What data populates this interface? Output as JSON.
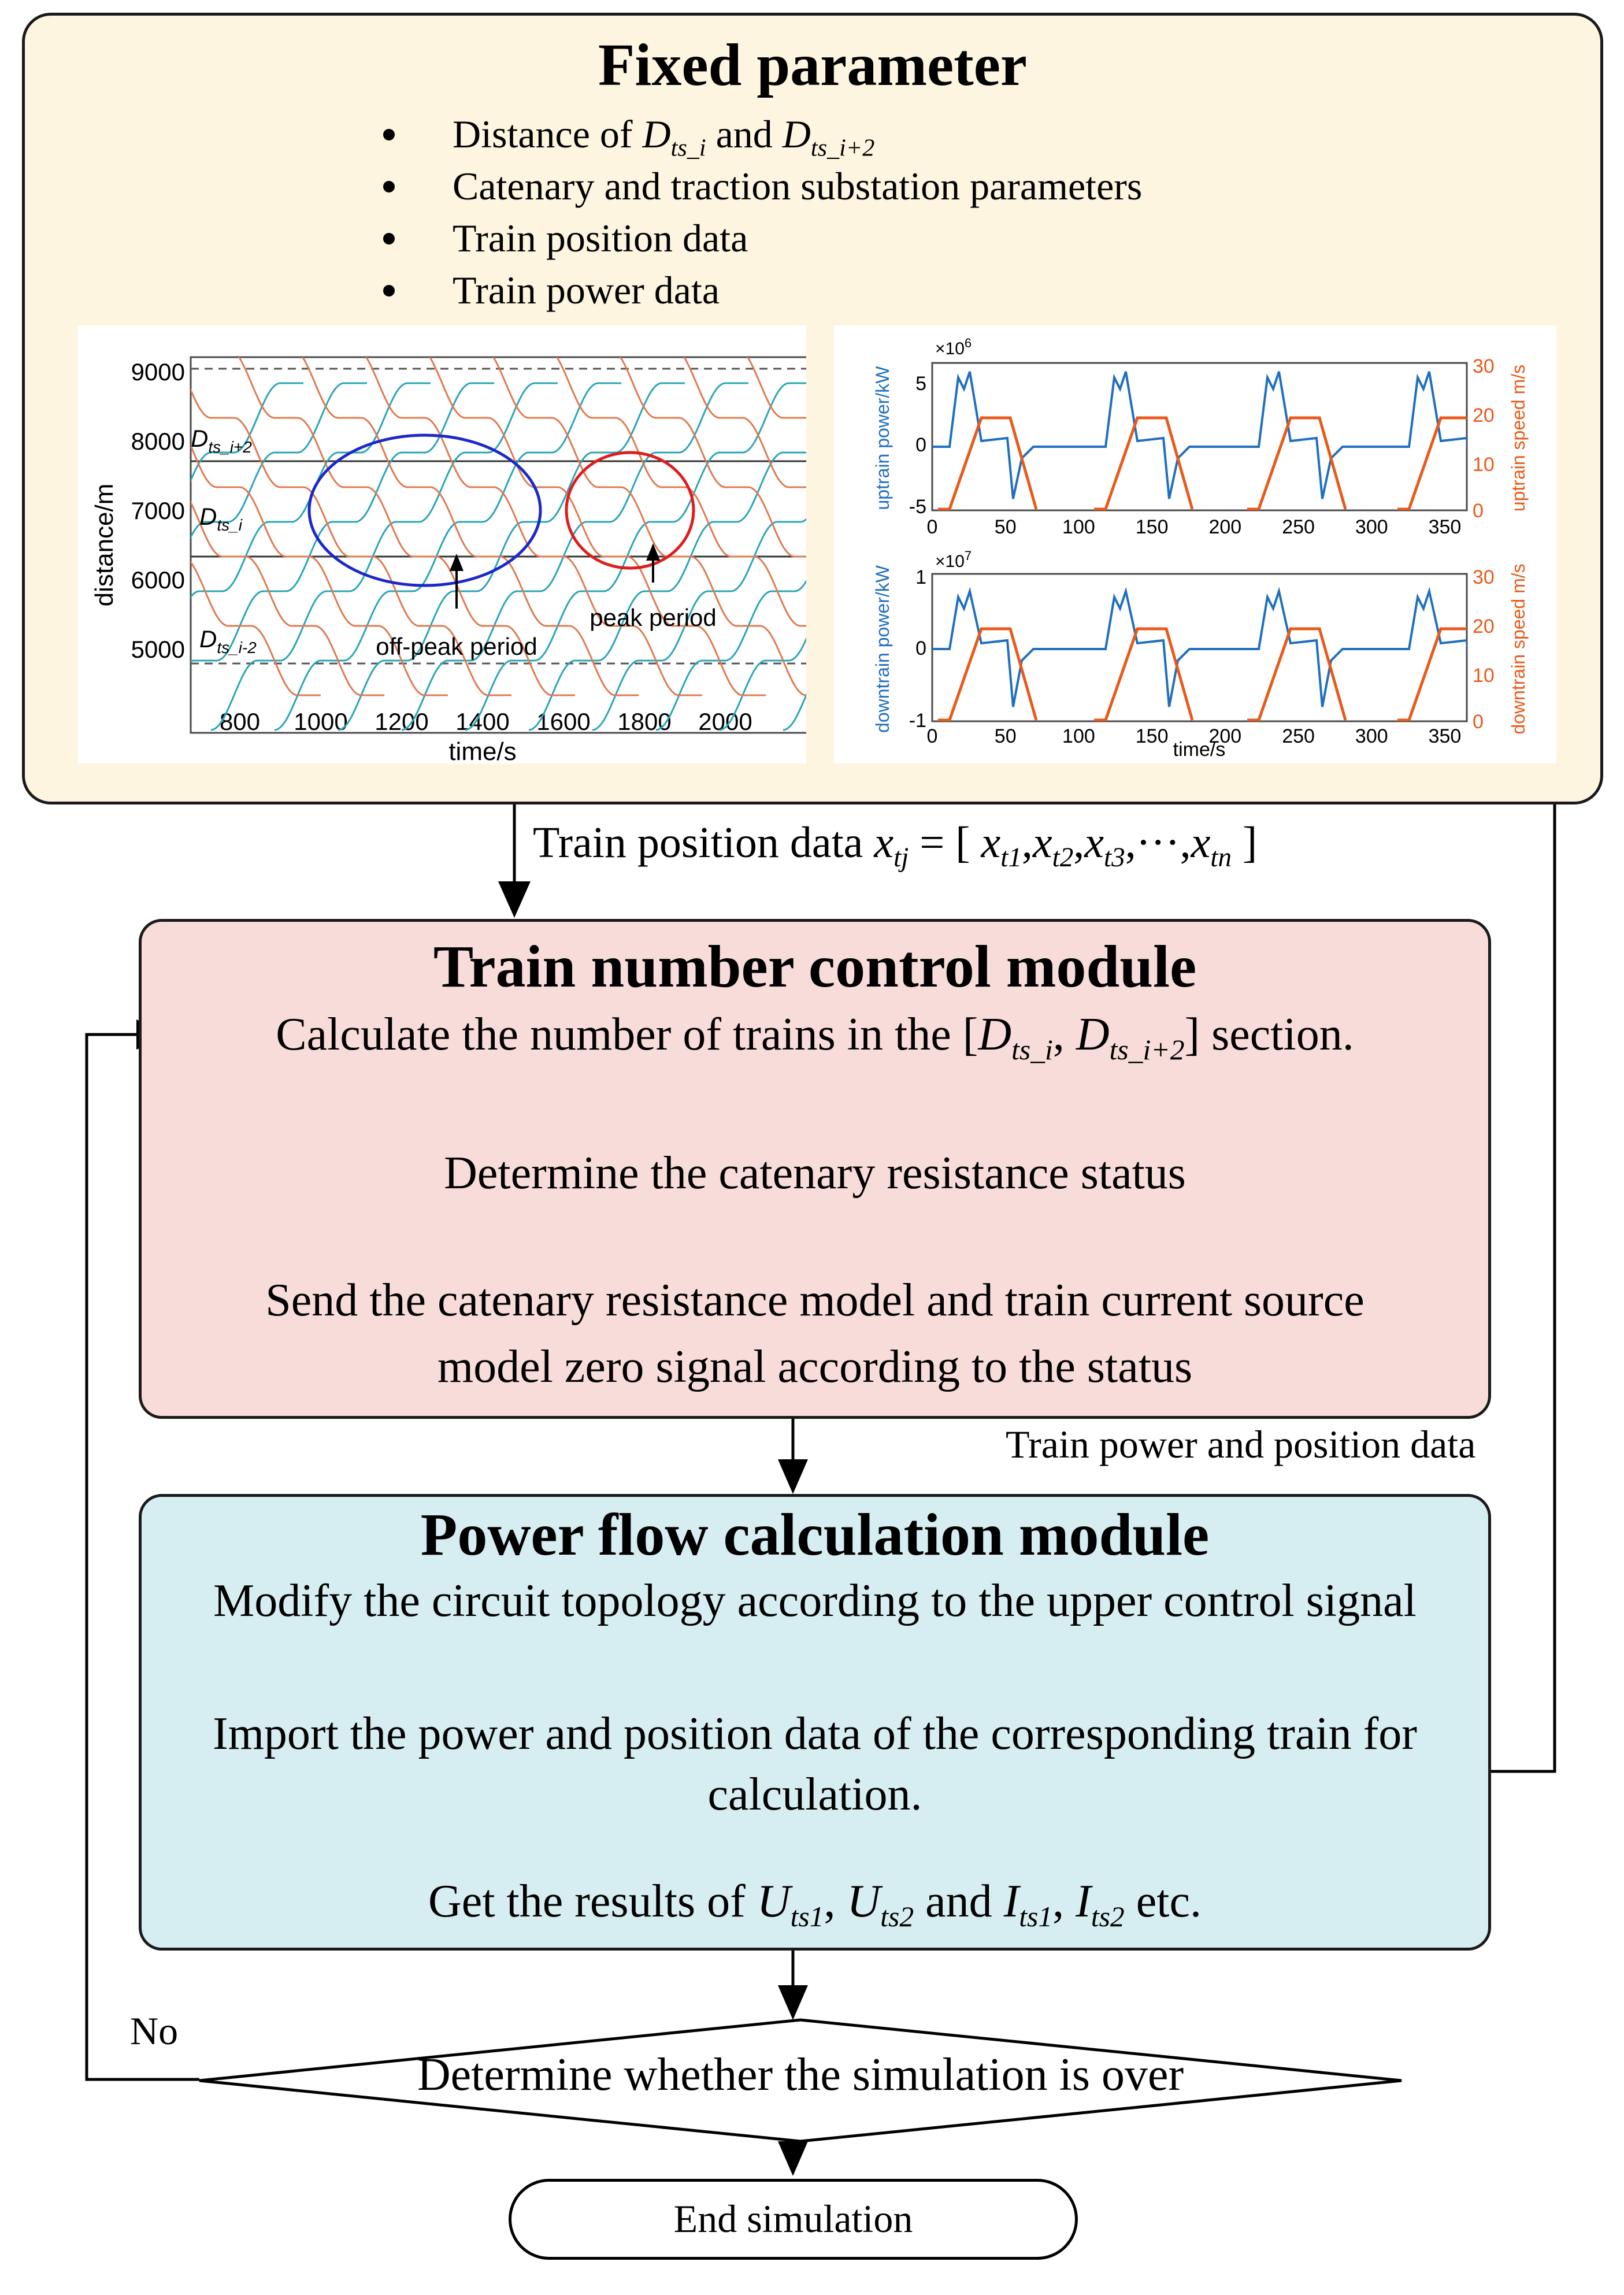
{
  "fixed": {
    "title": "Fixed parameter",
    "bullet1_pre": "Distance of ",
    "bullet1_D1": "D",
    "bullet1_s1": "ts_i",
    "bullet1_mid": " and ",
    "bullet1_D2": "D",
    "bullet1_s2": "ts_i+2",
    "bullet2": "Catenary and traction substation parameters",
    "bullet3": "Train position data",
    "bullet4": "Train power data"
  },
  "left_plot": {
    "xlabel": "time/s",
    "ylabel": "distance/m",
    "xticks": [
      "800",
      "1000",
      "1200",
      "1400",
      "1600",
      "1800",
      "2000"
    ],
    "yticks": [
      "9000",
      "8000",
      "7000",
      "6000",
      "5000"
    ],
    "label_top_D": "D",
    "label_top_sub": "ts_i+2",
    "label_mid_D": "D",
    "label_mid_sub": "ts_i",
    "label_bot_D": "D",
    "label_bot_sub": "ts_i-2",
    "offpeak": "off-peak period",
    "peak": "peak period",
    "colors": {
      "up": "#2aa5b8",
      "down": "#e07a50",
      "offpeak_ellipse": "#1c28c8",
      "peak_ellipse": "#e01c1c"
    }
  },
  "right_plot": {
    "top_ylabel_left": "uptrain power/kW",
    "top_ylabel_right": "uptrain speed m/s",
    "top_exp_base": "×10",
    "top_exp": "6",
    "top_left_ticks": [
      "5",
      "0",
      "-5"
    ],
    "top_right_ticks": [
      "30",
      "20",
      "10",
      "0"
    ],
    "bot_ylabel_left": "downtrain power/kW",
    "bot_ylabel_right": "downtrain speed m/s",
    "bot_exp_base": "×10",
    "bot_exp": "7",
    "bot_left_ticks": [
      "1",
      "0",
      "-1"
    ],
    "bot_right_ticks": [
      "30",
      "20",
      "10",
      "0"
    ],
    "xticks": [
      "0",
      "50",
      "100",
      "150",
      "200",
      "250",
      "300",
      "350"
    ],
    "xlabel": "time/s",
    "colors": {
      "power": "#1f6fc0",
      "speed": "#e85a1a"
    }
  },
  "arrow_position": {
    "pre": "Train position data ",
    "x": "x",
    "x_sub": "tj",
    "eq": " = [ ",
    "x1": "x",
    "x1_sub": "t1",
    "x2": "x",
    "x2_sub": "t2",
    "x3": "x",
    "x3_sub": "t3",
    "dots": "···",
    "xn": "x",
    "xn_sub": "tn",
    "close": " ]"
  },
  "train_module": {
    "title": "Train number control module",
    "step1_pre": "Calculate the number of trains in the [",
    "step1_D1": "D",
    "step1_s1": "ts_i",
    "step1_comma": ", ",
    "step1_D2": "D",
    "step1_s2": "ts_i+2",
    "step1_post": "] section.",
    "step2": "Determine the catenary resistance status",
    "step3a": "Send the catenary resistance model and train current source",
    "step3b": "model zero signal according to the status"
  },
  "power_data_label": "Train power and position data",
  "power_module": {
    "title": "Power flow calculation module",
    "step1": "Modify the circuit topology according to the upper control signal",
    "step2a": "Import the power and position data of the corresponding train for",
    "step2b": "calculation.",
    "step3_pre": "Get the results of ",
    "U1": "U",
    "U1_sub": "ts1",
    "sep1": ", ",
    "U2": "U",
    "U2_sub": "ts2",
    "and": " and ",
    "I1": "I",
    "I1_sub": "ts1",
    "sep2": ", ",
    "I2": "I",
    "I2_sub": "ts2",
    "etc": " etc."
  },
  "decision": {
    "text": "Determine whether the simulation is over",
    "no_label": "No"
  },
  "end": {
    "text": "End simulation"
  },
  "colors": {
    "fixed_bg": "#fdf5df",
    "train_bg": "#f8dcd9",
    "power_bg": "#d6edf1"
  }
}
